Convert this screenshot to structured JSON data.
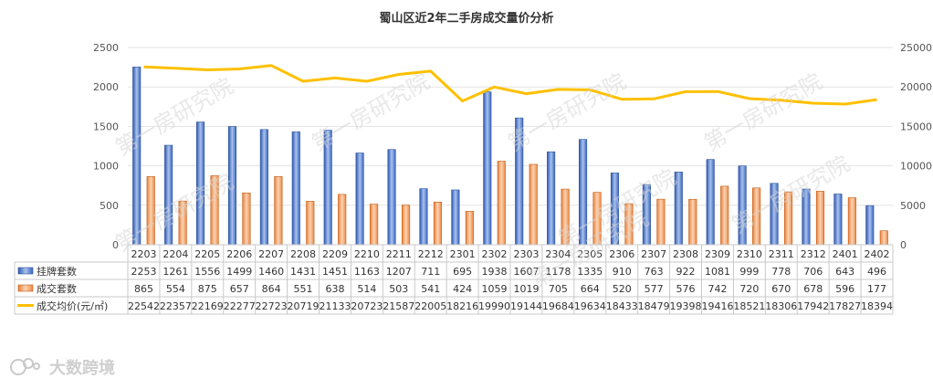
{
  "chart_data": {
    "type": "bar",
    "title": "蜀山区近2年二手房成交量价分析",
    "categories": [
      "2203",
      "2204",
      "2205",
      "2206",
      "2207",
      "2208",
      "2209",
      "2210",
      "2211",
      "2212",
      "2301",
      "2302",
      "2303",
      "2304",
      "2305",
      "2306",
      "2307",
      "2308",
      "2309",
      "2310",
      "2311",
      "2312",
      "2401",
      "2402"
    ],
    "series": [
      {
        "name": "挂牌套数",
        "type": "bar",
        "axis": "left",
        "color": "#4472C4",
        "values": [
          2253,
          1261,
          1556,
          1499,
          1460,
          1431,
          1451,
          1163,
          1207,
          711,
          695,
          1938,
          1607,
          1178,
          1335,
          910,
          763,
          922,
          1081,
          999,
          778,
          706,
          643,
          496
        ]
      },
      {
        "name": "成交套数",
        "type": "bar",
        "axis": "left",
        "color": "#ED7D31",
        "values": [
          865,
          554,
          875,
          657,
          864,
          551,
          638,
          514,
          503,
          541,
          424,
          1059,
          1019,
          705,
          664,
          520,
          577,
          576,
          742,
          720,
          670,
          678,
          596,
          177
        ]
      },
      {
        "name": "成交均价(元/㎡)",
        "type": "line",
        "axis": "right",
        "color": "#FFC000",
        "values": [
          22542,
          22357,
          22169,
          22277,
          22723,
          20719,
          21133,
          20723,
          21587,
          22005,
          18216,
          19990,
          19144,
          19684,
          19634,
          18433,
          18479,
          19398,
          19416,
          18521,
          18306,
          17942,
          17827,
          18394
        ]
      }
    ],
    "ylim_left": [
      0,
      2500
    ],
    "yticks_left": [
      "0",
      "500",
      "1000",
      "1500",
      "2000",
      "2500"
    ],
    "ylim_right": [
      0,
      25000
    ],
    "yticks_right": [
      "0",
      "5000",
      "10000",
      "15000",
      "20000",
      "25000"
    ],
    "grid": true,
    "legend": "data-table-below"
  },
  "watermarks": [
    "第一房研究院",
    "第一房研究院",
    "第一房研究院",
    "第一房研究院",
    "第一房研究院",
    "第一房研究院",
    "第一房研究院",
    "第一房研究院"
  ],
  "brand": {
    "label": "大数跨境"
  }
}
